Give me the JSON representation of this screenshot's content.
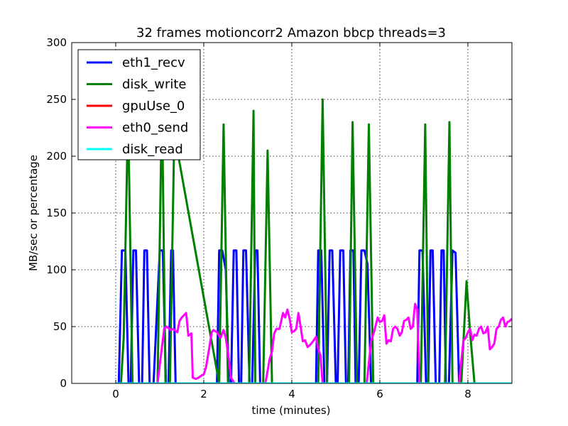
{
  "chart_data": {
    "type": "line",
    "title": "32 frames motioncorr2 Amazon  bbcp threads=3",
    "xlabel": "time (minutes)",
    "ylabel": "MB/sec or percentage",
    "xlim": [
      -1,
      9
    ],
    "ylim": [
      0,
      300
    ],
    "xticks": [
      0,
      2,
      4,
      6,
      8
    ],
    "yticks": [
      0,
      50,
      100,
      150,
      200,
      250,
      300
    ],
    "grid": true,
    "legend_position": "top-left",
    "series": [
      {
        "name": "eth1_recv",
        "color": "#0000ff",
        "x": [
          0.0,
          0.07,
          0.14,
          0.22,
          0.29,
          0.34,
          0.4,
          0.46,
          0.53,
          0.6,
          0.65,
          0.71,
          0.77,
          0.86,
          1.0,
          1.07,
          1.14,
          1.2,
          1.26,
          1.3,
          1.36,
          1.43,
          1.52,
          2.2,
          2.3,
          2.35,
          2.42,
          2.5,
          2.57,
          2.62,
          2.68,
          2.74,
          2.8,
          2.85,
          2.9,
          2.96,
          3.04,
          3.1,
          3.17,
          3.22,
          3.28,
          3.3,
          3.38,
          3.45,
          3.52,
          3.55,
          4.5,
          4.55,
          4.6,
          4.67,
          4.74,
          4.8,
          4.86,
          4.92,
          5.0,
          5.04,
          5.1,
          5.17,
          5.23,
          5.28,
          5.33,
          5.4,
          5.45,
          5.52,
          5.58,
          5.65,
          5.72,
          5.8,
          6.8,
          6.85,
          6.9,
          6.97,
          7.05,
          7.1,
          7.15,
          7.2,
          7.27,
          7.35,
          7.4,
          7.45,
          7.5,
          7.57,
          7.65,
          7.72,
          7.8,
          9.0
        ],
        "values": [
          0,
          0,
          117,
          117,
          0,
          0,
          117,
          117,
          0,
          0,
          117,
          117,
          0,
          0,
          117,
          117,
          0,
          0,
          117,
          117,
          0,
          0,
          0,
          0,
          0,
          117,
          117,
          100,
          0,
          0,
          117,
          117,
          0,
          0,
          117,
          117,
          0,
          0,
          117,
          117,
          0,
          0,
          0,
          0,
          0,
          0,
          0,
          0,
          117,
          117,
          0,
          0,
          117,
          117,
          0,
          0,
          117,
          117,
          0,
          0,
          117,
          117,
          0,
          0,
          117,
          117,
          105,
          0,
          0,
          0,
          117,
          117,
          0,
          0,
          117,
          117,
          0,
          0,
          117,
          117,
          0,
          0,
          117,
          115,
          0,
          0
        ]
      },
      {
        "name": "disk_write",
        "color": "#008000",
        "x": [
          0.0,
          0.12,
          0.18,
          0.28,
          0.38,
          0.85,
          0.95,
          1.05,
          1.13,
          1.23,
          1.33,
          2.35,
          2.45,
          2.55,
          2.93,
          3.03,
          3.13,
          3.17,
          3.25,
          3.35,
          3.45,
          3.55,
          4.5,
          4.6,
          4.7,
          4.8,
          5.3,
          5.38,
          5.48,
          5.65,
          5.75,
          5.85,
          6.85,
          6.93,
          7.03,
          7.1,
          7.48,
          7.58,
          7.65,
          7.85,
          7.97,
          8.05,
          8.15,
          9.0
        ],
        "values": [
          0,
          0,
          40,
          240,
          0,
          0,
          0,
          250,
          0,
          0,
          220,
          0,
          228,
          0,
          0,
          0,
          240,
          0,
          0,
          0,
          205,
          0,
          0,
          0,
          250,
          0,
          0,
          230,
          0,
          0,
          228,
          0,
          0,
          0,
          228,
          0,
          0,
          230,
          0,
          0,
          90,
          45,
          0,
          0
        ]
      },
      {
        "name": "gpuUse_0",
        "color": "#ff0000",
        "x": [
          0.0,
          9.0
        ],
        "values": [
          0,
          0
        ]
      },
      {
        "name": "eth0_send",
        "color": "#ff00ff",
        "x": [
          0.95,
          1.1,
          1.15,
          1.25,
          1.3,
          1.4,
          1.45,
          1.5,
          1.55,
          1.6,
          1.65,
          1.72,
          1.75,
          1.82,
          1.88,
          1.95,
          2.0,
          2.05,
          2.12,
          2.18,
          2.22,
          2.3,
          2.38,
          2.45,
          2.5,
          2.55,
          2.62,
          2.7,
          3.4,
          3.5,
          3.55,
          3.6,
          3.65,
          3.72,
          3.8,
          3.85,
          3.9,
          3.95,
          4.0,
          4.05,
          4.1,
          4.15,
          4.2,
          4.25,
          4.3,
          4.36,
          4.42,
          4.5,
          4.55,
          4.6,
          4.65,
          4.7,
          4.8,
          5.7,
          5.75,
          5.8,
          5.88,
          5.95,
          6.0,
          6.05,
          6.1,
          6.15,
          6.2,
          6.25,
          6.3,
          6.35,
          6.4,
          6.45,
          6.5,
          6.55,
          6.6,
          6.65,
          6.7,
          6.75,
          6.8,
          6.85,
          6.9,
          7.8,
          7.85,
          7.9,
          7.95,
          8.0,
          8.05,
          8.1,
          8.15,
          8.2,
          8.25,
          8.3,
          8.35,
          8.4,
          8.45,
          8.5,
          8.55,
          8.6,
          8.65,
          8.7,
          8.75,
          8.8,
          8.85,
          8.9,
          8.95,
          9.0
        ],
        "values": [
          0,
          48,
          50,
          47,
          48,
          45,
          55,
          58,
          60,
          62,
          42,
          44,
          5,
          4,
          5,
          7,
          8,
          14,
          30,
          45,
          47,
          45,
          40,
          47,
          40,
          27,
          5,
          0,
          0,
          22,
          28,
          44,
          48,
          48,
          62,
          58,
          65,
          57,
          45,
          46,
          48,
          62,
          50,
          37,
          38,
          32,
          34,
          38,
          41,
          30,
          25,
          0,
          0,
          0,
          18,
          37,
          47,
          58,
          54,
          55,
          60,
          35,
          38,
          37,
          48,
          50,
          48,
          42,
          45,
          55,
          56,
          58,
          48,
          50,
          70,
          65,
          0,
          0,
          20,
          38,
          40,
          45,
          48,
          38,
          43,
          42,
          48,
          50,
          44,
          45,
          50,
          30,
          32,
          35,
          48,
          50,
          56,
          58,
          50,
          54,
          55,
          57
        ]
      },
      {
        "name": "disk_read",
        "color": "#00ffff",
        "x": [
          0.0,
          9.0
        ],
        "values": [
          0,
          0
        ]
      }
    ]
  }
}
